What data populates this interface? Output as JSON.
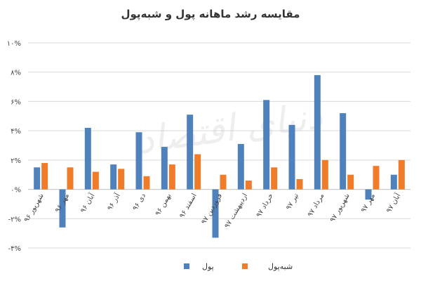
{
  "chart_data": {
    "type": "bar",
    "title": "مقایسه رشد ماهانه پول و شبه‌پول",
    "categories": [
      "شهریور ۹۶",
      "مهر ۹۶",
      "آبان ۹۶",
      "آذر ۹۶",
      "دی ۹۶",
      "بهمن ۹۶",
      "اسفند ۹۶",
      "فروردین ۹۷",
      "اردیبهشت ۹۷",
      "خرداد ۹۷",
      "تیر ۹۷",
      "مرداد ۹۷",
      "شهریور ۹۷",
      "مهر ۹۷",
      "آبان ۹۷"
    ],
    "series": [
      {
        "name": "پول",
        "color": "#4f81bd",
        "values": [
          1.5,
          -2.6,
          4.2,
          1.7,
          3.9,
          2.9,
          5.1,
          -3.3,
          3.1,
          6.1,
          4.4,
          7.8,
          5.2,
          -0.7,
          1.0
        ]
      },
      {
        "name": "شبه‌پول",
        "color": "#f07b28",
        "values": [
          1.8,
          1.5,
          1.2,
          1.4,
          0.9,
          1.7,
          2.4,
          1.0,
          0.6,
          1.5,
          0.7,
          2.0,
          1.0,
          1.6,
          2.0
        ]
      }
    ],
    "ylim": [
      -4,
      10
    ],
    "yticks": [
      -4,
      -2,
      0,
      2,
      4,
      6,
      8,
      10
    ],
    "ytick_labels": [
      "-۴%",
      "-۲%",
      "۰%",
      "۲%",
      "۴%",
      "۶%",
      "۸%",
      "۱۰%"
    ],
    "grid": true,
    "legend_position": "bottom",
    "watermark": "دنیای اقتصاد"
  }
}
